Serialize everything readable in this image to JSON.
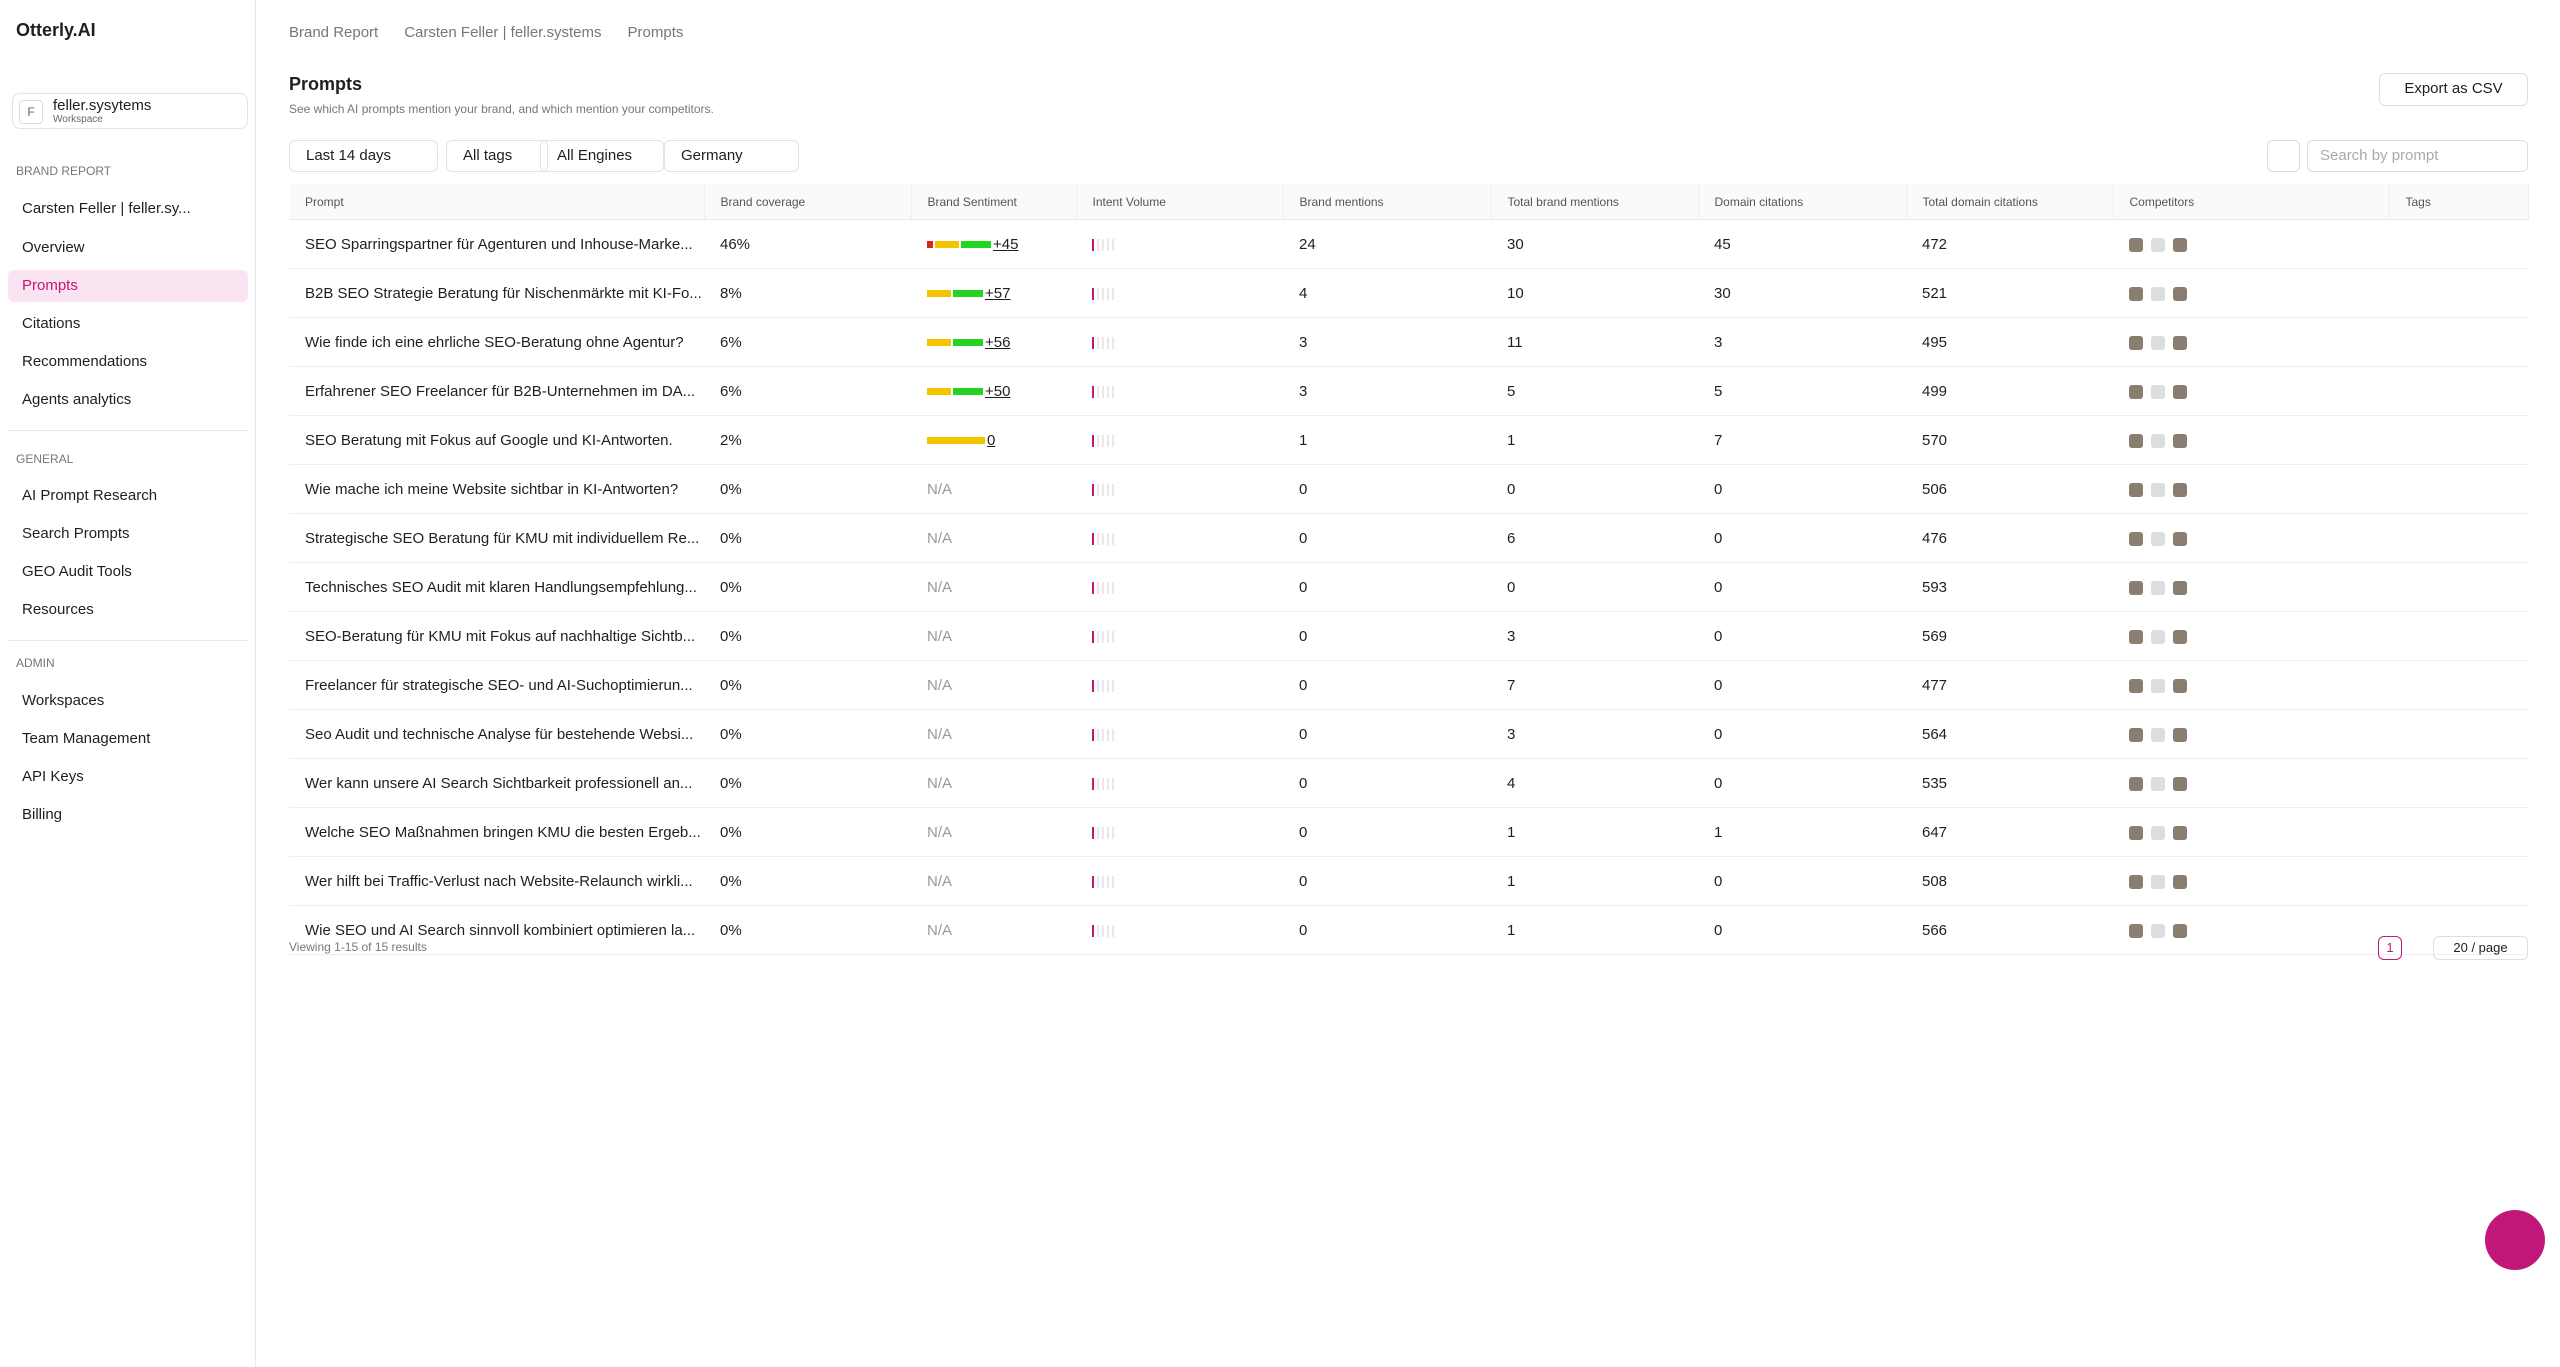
{
  "sidebar": {
    "logo": "Otterly.AI",
    "workspace": "feller.sysytems",
    "workspace_label": "Workspace",
    "brand_report_heading": "BRAND REPORT",
    "brand": "Carsten Feller | feller.sy...",
    "brand_items": [
      "Overview",
      "Prompts",
      "Citations",
      "Recommendations",
      "Agents analytics"
    ],
    "general_heading": "GENERAL",
    "general_items": [
      "AI Prompt Research",
      "Search Prompts",
      "GEO Audit Tools",
      "Resources"
    ],
    "admin_heading": "ADMIN",
    "admin_items": [
      "Workspaces",
      "Team Management",
      "API Keys",
      "Billing"
    ]
  },
  "breadcrumb": [
    "Brand Report",
    "Carsten Feller | feller.systems",
    "Prompts"
  ],
  "header": {
    "title": "Prompts",
    "subtitle": "See which AI prompts mention your brand, and which mention your competitors.",
    "export": "Export as CSV"
  },
  "filters": [
    "Last 14 days",
    "All tags",
    "All Engines",
    "Germany"
  ],
  "search_placeholder": "Search by prompt",
  "table": {
    "columns": [
      "Prompt",
      "Brand coverage",
      "Brand Sentiment",
      "Intent Volume",
      "Brand mentions",
      "Total brand mentions",
      "Domain citations",
      "Total domain citations",
      "Competitors",
      "Tags"
    ],
    "rows": [
      [
        "SEO Sparringspartner für Agenturen und Inhouse-Marke...",
        "46%",
        "+45",
        24,
        30,
        45,
        472
      ],
      [
        "B2B SEO Strategie Beratung für Nischenmärkte mit KI-Fo...",
        "8%",
        "+57",
        4,
        10,
        30,
        521
      ],
      [
        "Wie finde ich eine ehrliche SEO-Beratung ohne Agentur?",
        "6%",
        "+56",
        3,
        11,
        3,
        495
      ],
      [
        "Erfahrener SEO Freelancer für B2B-Unternehmen im DA...",
        "6%",
        "+50",
        3,
        5,
        5,
        499
      ],
      [
        "SEO Beratung mit Fokus auf Google und KI-Antworten.",
        "2%",
        "0",
        1,
        1,
        7,
        570
      ],
      [
        "Wie mache ich meine Website sichtbar in KI-Antworten?",
        "0%",
        "N/A",
        0,
        0,
        0,
        506
      ],
      [
        "Strategische SEO Beratung für KMU mit individuellem Re...",
        "0%",
        "N/A",
        0,
        6,
        0,
        476
      ],
      [
        "Technisches SEO Audit mit klaren Handlungsempfehlung...",
        "0%",
        "N/A",
        0,
        0,
        0,
        593
      ],
      [
        "SEO-Beratung für KMU mit Fokus auf nachhaltige Sichtb...",
        "0%",
        "N/A",
        0,
        3,
        0,
        569
      ],
      [
        "Freelancer für strategische SEO- und AI-Suchoptimierun...",
        "0%",
        "N/A",
        0,
        7,
        0,
        477
      ],
      [
        "Seo Audit und technische Analyse für bestehende Websi...",
        "0%",
        "N/A",
        0,
        3,
        0,
        564
      ],
      [
        "Wer kann unsere AI Search Sichtbarkeit professionell an...",
        "0%",
        "N/A",
        0,
        4,
        0,
        535
      ],
      [
        "Welche SEO Maßnahmen bringen KMU die besten Ergeb...",
        "0%",
        "N/A",
        0,
        1,
        1,
        647
      ],
      [
        "Wer hilft bei Traffic-Verlust nach Website-Relaunch wirkli...",
        "0%",
        "N/A",
        0,
        1,
        0,
        508
      ],
      [
        "Wie SEO und AI Search sinnvoll kombiniert optimieren la...",
        "0%",
        "N/A",
        0,
        1,
        0,
        566
      ]
    ]
  },
  "footer": {
    "results": "Viewing 1-15 of 15 results",
    "page": 1,
    "page_size": "20 / page"
  }
}
